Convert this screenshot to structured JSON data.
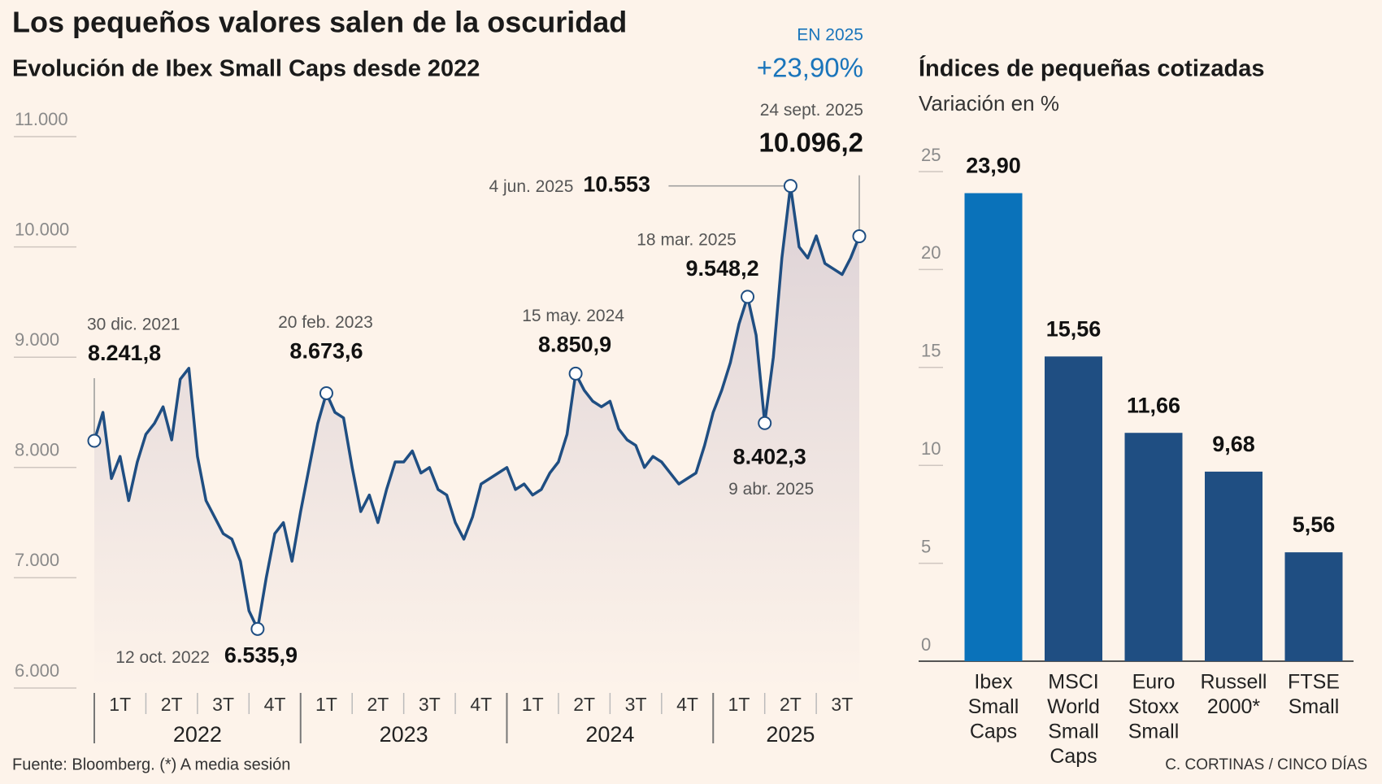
{
  "title": "Los pequeños valores salen de la oscuridad",
  "source": "Fuente: Bloomberg. (*) A media sesión",
  "credit": "C. CORTINAS / CINCO DÍAS",
  "chart_data": [
    {
      "type": "line",
      "title": "Evolución de Ibex Small Caps desde 2022",
      "highlight_label": "EN 2025",
      "highlight_value": "+23,90%",
      "color": "#1f4e82",
      "ylim": [
        6000,
        11000
      ],
      "yticks": [
        {
          "value": 6000,
          "label": "6.000"
        },
        {
          "value": 7000,
          "label": "7.000"
        },
        {
          "value": 8000,
          "label": "8.000"
        },
        {
          "value": 9000,
          "label": "9.000"
        },
        {
          "value": 10000,
          "label": "10.000"
        },
        {
          "value": 11000,
          "label": "11.000"
        }
      ],
      "quarters": [
        "1T",
        "2T",
        "3T",
        "4T",
        "1T",
        "2T",
        "3T",
        "4T",
        "1T",
        "2T",
        "3T",
        "4T",
        "1T",
        "2T",
        "3T"
      ],
      "years": [
        "2022",
        "2023",
        "2024",
        "2025"
      ],
      "values": [
        8241.8,
        8500,
        7900,
        8100,
        7700,
        8050,
        8300,
        8400,
        8550,
        8250,
        8800,
        8900,
        8100,
        7700,
        7550,
        7400,
        7350,
        7150,
        6700,
        6535.9,
        7000,
        7400,
        7500,
        7150,
        7600,
        8000,
        8400,
        8673.6,
        8500,
        8450,
        8000,
        7600,
        7750,
        7500,
        7800,
        8050,
        8050,
        8150,
        7950,
        8000,
        7800,
        7750,
        7500,
        7350,
        7550,
        7850,
        7900,
        7950,
        8000,
        7800,
        7850,
        7750,
        7800,
        7950,
        8050,
        8300,
        8850.9,
        8700,
        8600,
        8550,
        8600,
        8350,
        8250,
        8200,
        8000,
        8100,
        8050,
        7950,
        7850,
        7900,
        7950,
        8200,
        8500,
        8700,
        8950,
        9300,
        9548.2,
        9200,
        8402.3,
        9000,
        9900,
        10553,
        10000,
        9900,
        10100,
        9850,
        9800,
        9750,
        9900,
        10096.2
      ],
      "annotations": [
        {
          "date": "30 dic. 2021",
          "value": 8241.8,
          "label": "8.241,8"
        },
        {
          "date": "12 oct. 2022",
          "value": 6535.9,
          "label": "6.535,9"
        },
        {
          "date": "20 feb. 2023",
          "value": 8673.6,
          "label": "8.673,6"
        },
        {
          "date": "15 may. 2024",
          "value": 8850.9,
          "label": "8.850,9"
        },
        {
          "date": "18 mar. 2025",
          "value": 9548.2,
          "label": "9.548,2"
        },
        {
          "date": "9 abr. 2025",
          "value": 8402.3,
          "label": "8.402,3"
        },
        {
          "date": "4 jun. 2025",
          "value": 10553,
          "label": "10.553"
        },
        {
          "date": "24 sept. 2025",
          "value": 10096.2,
          "label": "10.096,2"
        }
      ]
    },
    {
      "type": "bar",
      "title": "Índices de pequeñas cotizadas",
      "subtitle": "Variación en %",
      "categories": [
        [
          "Ibex",
          "Small",
          "Caps"
        ],
        [
          "MSCI",
          "World",
          "Small",
          "Caps"
        ],
        [
          "Euro",
          "Stoxx",
          "Small"
        ],
        [
          "Russell",
          "2000*"
        ],
        [
          "FTSE",
          "Small"
        ]
      ],
      "values": [
        23.9,
        15.56,
        11.66,
        9.68,
        5.56
      ],
      "value_labels": [
        "23,90",
        "15,56",
        "11,66",
        "9,68",
        "5,56"
      ],
      "colors": [
        "#0a72ba",
        "#1f4e82",
        "#1f4e82",
        "#1f4e82",
        "#1f4e82"
      ],
      "ylim": [
        0,
        25
      ],
      "yticks": [
        0,
        5,
        10,
        15,
        20,
        25
      ]
    }
  ]
}
